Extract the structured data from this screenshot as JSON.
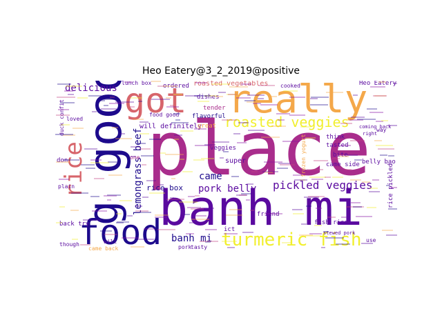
{
  "title": "Heo Eatery@3_2_2019@positive",
  "words": {
    "place": "place",
    "banh_mi_big": "banh mi",
    "good": "good",
    "food": "food",
    "got": "got",
    "really": "really",
    "rice": "rice",
    "turmeric_fish": "turmeric fish",
    "roasted_veggies": "roasted veggies",
    "pickled_veggies": "pickled veggies",
    "pork_belly": "pork belly",
    "lemongrass_beef": "lemongrass beef",
    "delicious": "delicious",
    "roasted_vegetables": "roasted vegetables",
    "ordered": "ordered",
    "came": "came",
    "banh_mi_small": "banh mi",
    "rice_box": "rice box",
    "lunch_box": "lunch box",
    "dishes": "dishes",
    "tender": "tender",
    "flavorful": "flavorful",
    "will_definitely": "will definitely",
    "super": "super",
    "veggies": "veggies",
    "friend": "friend",
    "bite": "bite",
    "tasted": "tasted",
    "think": "think",
    "came_side": "came side",
    "belly_bao": "belly bao",
    "rice_pickled": "rice pickled",
    "fish_rice": "fish rice",
    "heo_eatery": "Heo Eatery",
    "cooked": "cooked",
    "coming_back": "coming back",
    "right": "right",
    "back_try": "back try",
    "though": "though",
    "loved": "loved",
    "duck_confit": "duck confit",
    "don": "don",
    "one": "one",
    "food_good": "food good",
    "great": "great",
    "pork": "pork",
    "use": "use",
    "way": "way",
    "came_back": "came back",
    "tasty": "tasty",
    "plain": "plain",
    "will": "will",
    "frozen_yogurt": "frozen yogurt",
    "stewed_pork": "stewed pork",
    "ict": "ict"
  },
  "colors": {
    "magenta": "#a92d8c",
    "navy": "#1d0a8c",
    "purple": "#5a0a9f",
    "salmon": "#d7656b",
    "orange": "#f4a84a",
    "yellow": "#f1ef2e",
    "violet": "#8810a4",
    "pink": "#c24583"
  }
}
